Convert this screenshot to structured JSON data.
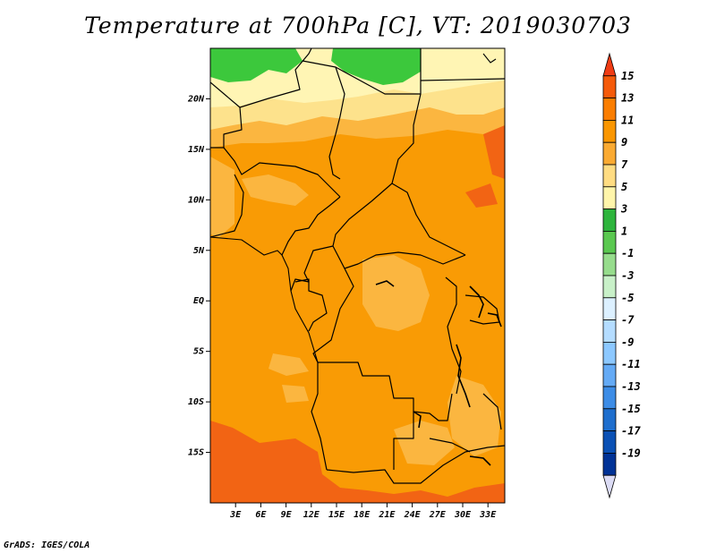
{
  "title": "Temperature at 700hPa [C], VT: 2019030703",
  "credit": "GrADS: IGES/COLA",
  "map": {
    "lat_labels": [
      "20N",
      "15N",
      "10N",
      "5N",
      "EQ",
      "5S",
      "10S",
      "15S"
    ],
    "lat_values": [
      20,
      15,
      10,
      5,
      0,
      -5,
      -10,
      -15
    ],
    "lon_labels": [
      "3E",
      "6E",
      "9E",
      "12E",
      "15E",
      "18E",
      "21E",
      "24E",
      "27E",
      "30E",
      "33E"
    ],
    "lon_values": [
      3,
      6,
      9,
      12,
      15,
      18,
      21,
      24,
      27,
      30,
      33
    ],
    "lon_range": [
      0,
      35
    ],
    "lat_range": [
      -20,
      25
    ]
  },
  "colorbar": {
    "labels": [
      "15",
      "13",
      "11",
      "9",
      "7",
      "5",
      "3",
      "1",
      "-1",
      "-3",
      "-5",
      "-7",
      "-9",
      "-11",
      "-13",
      "-15",
      "-17",
      "-19"
    ],
    "colors": [
      "#f03c14",
      "#f55a0a",
      "#fa7d00",
      "#fa9600",
      "#faaa32",
      "#ffdc82",
      "#fff5aa",
      "#2db43c",
      "#5ac850",
      "#96dc8c",
      "#c8f0c8",
      "#dcf0ff",
      "#b4dcff",
      "#8cc8ff",
      "#64aaf5",
      "#3c8ce6",
      "#1e6ecd",
      "#0a50b4",
      "#003296",
      "#000a64"
    ]
  },
  "palette": {
    "c_red": "#f26414",
    "c_orange": "#f99b05",
    "c_lightorange": "#fbb640",
    "c_lightyellow": "#fde28c",
    "c_paleyellow": "#fff5b4",
    "c_green": "#3cc83c",
    "c_border": "#000000"
  }
}
